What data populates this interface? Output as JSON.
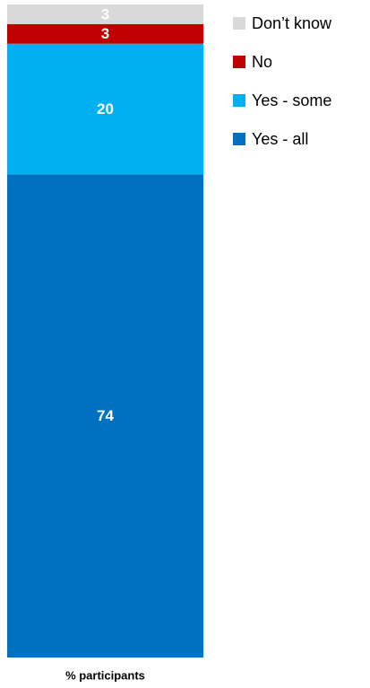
{
  "chart_data": {
    "type": "stacked_bar",
    "categories": [
      "% participants"
    ],
    "series": [
      {
        "name": "Yes - all",
        "color": "#0070c0",
        "values": [
          74
        ]
      },
      {
        "name": "Yes - some",
        "color": "#00b0f0",
        "values": [
          20
        ]
      },
      {
        "name": "No",
        "color": "#c00000",
        "values": [
          3
        ]
      },
      {
        "name": "Don’t know",
        "color": "#d9d9d9",
        "values": [
          3
        ]
      }
    ],
    "ylim": [
      0,
      100
    ]
  }
}
